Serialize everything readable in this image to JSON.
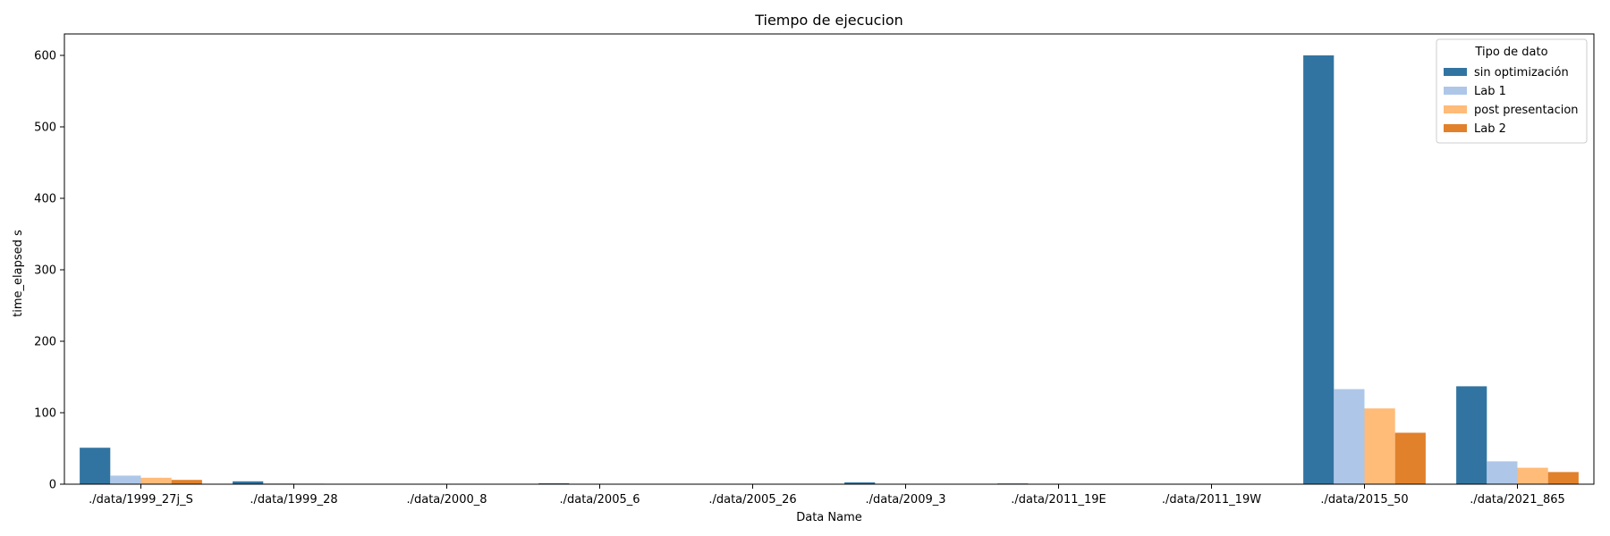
{
  "chart_data": {
    "type": "bar",
    "title": "Tiempo de ejecucion",
    "xlabel": "Data Name",
    "ylabel": "time_elapsed s",
    "ylim": [
      0,
      630
    ],
    "yticks": [
      0,
      100,
      200,
      300,
      400,
      500,
      600
    ],
    "grid": false,
    "legend": {
      "title": "Tipo de dato",
      "placement": "top-right"
    },
    "categories": [
      "./data/1999_27j_S",
      "./data/1999_28",
      "./data/2000_8",
      "./data/2005_6",
      "./data/2005_26",
      "./data/2009_3",
      "./data/2011_19E",
      "./data/2011_19W",
      "./data/2015_50",
      "./data/2021_865"
    ],
    "series": [
      {
        "name": "sin optimización",
        "color": "#3274a1",
        "values": [
          51,
          4,
          0.3,
          1.2,
          0.2,
          2.5,
          1.0,
          0.2,
          600,
          137
        ]
      },
      {
        "name": "Lab 1",
        "color": "#aec7e8",
        "values": [
          12,
          1.0,
          0.1,
          0.4,
          0.1,
          0.6,
          0.3,
          0.1,
          133,
          32
        ]
      },
      {
        "name": "post presentacion",
        "color": "#ffbb78",
        "values": [
          9,
          0.8,
          0.1,
          0.3,
          0.1,
          0.5,
          0.3,
          0.1,
          106,
          23
        ]
      },
      {
        "name": "Lab 2",
        "color": "#e1812c",
        "values": [
          6,
          0.6,
          0.1,
          0.2,
          0.05,
          0.4,
          0.2,
          0.05,
          72,
          17
        ]
      }
    ]
  }
}
